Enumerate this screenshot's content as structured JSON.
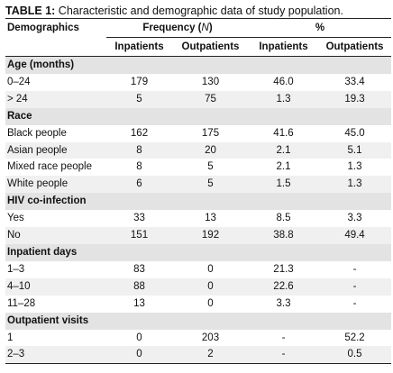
{
  "caption": {
    "label": "TABLE 1:",
    "text": " Characteristic and demographic data of study population."
  },
  "header": {
    "demographics": "Demographics",
    "frequency": "Frequency (N)",
    "percent": "%",
    "inpatients": "Inpatients",
    "outpatients": "Outpatients",
    "inpatients_pct": "Inpatients",
    "outpatients_pct": "Outpatients"
  },
  "sections": [
    {
      "title": "Age (months)",
      "rows": [
        {
          "label": "0–24",
          "in_n": "179",
          "out_n": "130",
          "in_pct": "46.0",
          "out_pct": "33.4"
        },
        {
          "label": "> 24",
          "in_n": "5",
          "out_n": "75",
          "in_pct": "1.3",
          "out_pct": "19.3"
        }
      ]
    },
    {
      "title": "Race",
      "rows": [
        {
          "label": "Black people",
          "in_n": "162",
          "out_n": "175",
          "in_pct": "41.6",
          "out_pct": "45.0"
        },
        {
          "label": "Asian people",
          "in_n": "8",
          "out_n": "20",
          "in_pct": "2.1",
          "out_pct": "5.1"
        },
        {
          "label": "Mixed race people",
          "in_n": "8",
          "out_n": "5",
          "in_pct": "2.1",
          "out_pct": "1.3"
        },
        {
          "label": "White people",
          "in_n": "6",
          "out_n": "5",
          "in_pct": "1.5",
          "out_pct": "1.3"
        }
      ]
    },
    {
      "title": "HIV co-infection",
      "rows": [
        {
          "label": "Yes",
          "in_n": "33",
          "out_n": "13",
          "in_pct": "8.5",
          "out_pct": "3.3"
        },
        {
          "label": "No",
          "in_n": "151",
          "out_n": "192",
          "in_pct": "38.8",
          "out_pct": "49.4"
        }
      ]
    },
    {
      "title": "Inpatient days",
      "rows": [
        {
          "label": "1–3",
          "in_n": "83",
          "out_n": "0",
          "in_pct": "21.3",
          "out_pct": "-"
        },
        {
          "label": "4–10",
          "in_n": "88",
          "out_n": "0",
          "in_pct": "22.6",
          "out_pct": "-"
        },
        {
          "label": "11–28",
          "in_n": "13",
          "out_n": "0",
          "in_pct": "3.3",
          "out_pct": "-"
        }
      ]
    },
    {
      "title": "Outpatient visits",
      "rows": [
        {
          "label": "1",
          "in_n": "0",
          "out_n": "203",
          "in_pct": "-",
          "out_pct": "52.2"
        },
        {
          "label": "2–3",
          "in_n": "0",
          "out_n": "2",
          "in_pct": "-",
          "out_pct": "0.5"
        }
      ]
    }
  ]
}
